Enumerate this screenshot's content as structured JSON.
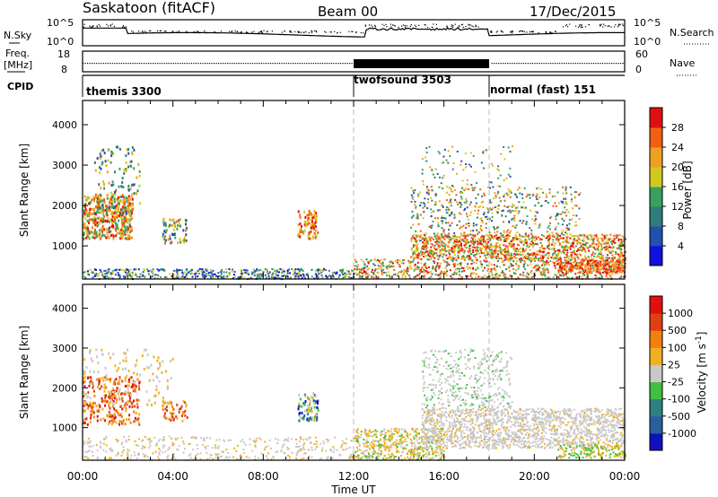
{
  "header": {
    "station": "Saskatoon (fitACF)",
    "beam": "Beam 00",
    "date": "17/Dec/2015"
  },
  "top_panels": {
    "nsky_label": "N.Sky",
    "nsearch_label": "N.Search",
    "nsky_ticks": [
      "10^5",
      "10^0"
    ],
    "nsearch_ticks": [
      "10^5",
      "10^0"
    ],
    "freq_label": "Freq.",
    "freq_unit": "[MHz]",
    "freq_ticks": [
      "18",
      "8"
    ],
    "nave_label": "Nave",
    "nave_ticks": [
      "60",
      "0"
    ],
    "cpid_label": "CPID",
    "cpid_modes": [
      {
        "name": "themis 3300",
        "start_hour": 0
      },
      {
        "name": "twofsound 3503",
        "start_hour": 12
      },
      {
        "name": "normal (fast) 151",
        "start_hour": 18
      }
    ]
  },
  "chart_data": [
    {
      "type": "heatmap",
      "title": "",
      "xlabel": "Time UT",
      "ylabel": "Slant Range [km]",
      "xlim": [
        0,
        24
      ],
      "ylim": [
        180,
        4600
      ],
      "x_ticks": [
        "00:00",
        "04:00",
        "08:00",
        "12:00",
        "16:00",
        "20:00",
        "00:00"
      ],
      "y_ticks": [
        1000,
        2000,
        3000,
        4000
      ],
      "colorbar": {
        "label": "Power [dB]",
        "ticks": [
          "4",
          "8",
          "12",
          "16",
          "20",
          "24",
          "28"
        ],
        "colors": [
          "#1010e0",
          "#2050b0",
          "#2e7d7a",
          "#3aa060",
          "#d4c820",
          "#f0a020",
          "#f06010",
          "#e01010"
        ]
      },
      "mode_boundaries": [
        12,
        18
      ]
    },
    {
      "type": "heatmap",
      "title": "",
      "xlabel": "Time UT",
      "ylabel": "Slant Range [km]",
      "xlim": [
        0,
        24
      ],
      "ylim": [
        180,
        4600
      ],
      "x_ticks": [
        "00:00",
        "04:00",
        "08:00",
        "12:00",
        "16:00",
        "20:00",
        "00:00"
      ],
      "y_ticks": [
        1000,
        2000,
        3000,
        4000
      ],
      "colorbar": {
        "label": "Velocity [m s^-1]",
        "ticks": [
          "1000",
          "500",
          "100",
          "25",
          "-25",
          "-100",
          "-500",
          "-1000"
        ],
        "colors": [
          "#1010c0",
          "#2a60a0",
          "#2e8080",
          "#40c040",
          "#c8c8c8",
          "#f0b020",
          "#f08010",
          "#e04010",
          "#e01010"
        ]
      },
      "mode_boundaries": [
        12,
        18
      ]
    }
  ]
}
